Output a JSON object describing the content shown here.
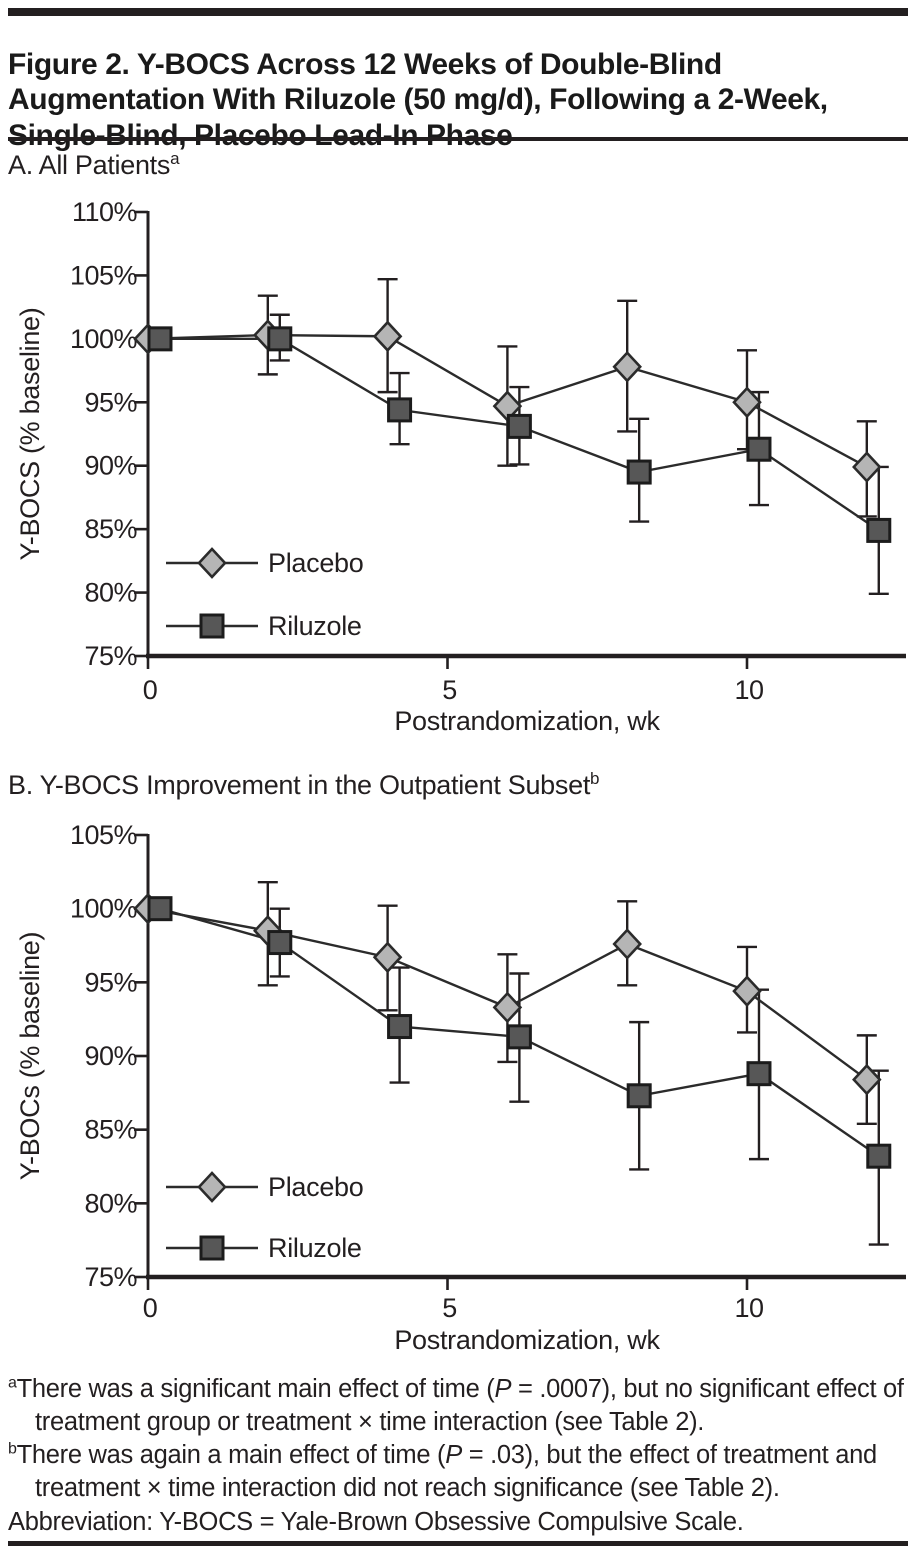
{
  "header": {
    "title_lines": [
      "Figure 2. Y-BOCS Across 12 Weeks of Double-Blind",
      "Augmentation With Riluzole (50 mg/d), Following a 2-Week,",
      "Single-Blind, Placebo Lead-In Phase"
    ]
  },
  "colors": {
    "placebo_fill": "#b5b5b5",
    "riluzole_fill": "#575757",
    "line": "#2b2b2b",
    "text": "#231f20"
  },
  "chart_data": [
    {
      "panel": "A",
      "type": "line",
      "title": "A. All Patients",
      "title_sup": "a",
      "xlabel": "Postrandomization, wk",
      "ylabel": "Y-BOCS (% baseline)",
      "ylim": [
        75,
        110
      ],
      "y_tick_step": 5,
      "y_tick_labels": [
        "110%",
        "105%",
        "100%",
        "95%",
        "90%",
        "85%",
        "80%",
        "75%"
      ],
      "x_ticks": [
        0,
        5,
        10
      ],
      "x_tick_labels": [
        "0",
        "5",
        "10"
      ],
      "x": [
        0,
        2,
        4,
        6,
        8,
        10,
        12
      ],
      "series": [
        {
          "name": "Placebo",
          "marker": "diamond",
          "fill": "#b5b5b5",
          "stroke": "#2b2b2b",
          "x_offset_wk": 0,
          "values": [
            100,
            100.3,
            100.2,
            94.7,
            97.8,
            95.0,
            89.9
          ],
          "err_hi": [
            100,
            103.4,
            104.7,
            99.4,
            103.0,
            99.1,
            93.5
          ],
          "err_lo": [
            100,
            97.2,
            95.8,
            90.0,
            92.7,
            91.3,
            86.0
          ]
        },
        {
          "name": "Riluzole",
          "marker": "square",
          "fill": "#575757",
          "stroke": "#1c1c1c",
          "x_offset_wk": 0.2,
          "values": [
            100,
            100,
            94.4,
            93.1,
            89.5,
            91.3,
            84.9
          ],
          "err_hi": [
            100,
            101.9,
            97.3,
            96.2,
            93.7,
            95.8,
            89.9
          ],
          "err_lo": [
            100,
            98.3,
            91.7,
            90.1,
            85.6,
            86.9,
            79.9
          ]
        }
      ]
    },
    {
      "panel": "B",
      "type": "line",
      "title": "B. Y-BOCS Improvement in the Outpatient Subset",
      "title_sup": "b",
      "xlabel": "Postrandomization, wk",
      "ylabel": "Y-BOCs (% baseline)",
      "ylim": [
        75,
        105
      ],
      "y_tick_step": 5,
      "y_tick_labels": [
        "105%",
        "100%",
        "95%",
        "90%",
        "85%",
        "80%",
        "75%"
      ],
      "x_ticks": [
        0,
        5,
        10
      ],
      "x_tick_labels": [
        "0",
        "5",
        "10"
      ],
      "x": [
        0,
        2,
        4,
        6,
        8,
        10,
        12
      ],
      "series": [
        {
          "name": "Placebo",
          "marker": "diamond",
          "fill": "#b5b5b5",
          "stroke": "#2b2b2b",
          "x_offset_wk": 0,
          "values": [
            100,
            98.5,
            96.7,
            93.3,
            97.6,
            94.4,
            88.4
          ],
          "err_hi": [
            100,
            101.8,
            100.2,
            96.9,
            100.5,
            97.4,
            91.4
          ],
          "err_lo": [
            100,
            94.8,
            93.1,
            89.6,
            94.8,
            91.6,
            85.4
          ]
        },
        {
          "name": "Riluzole",
          "marker": "square",
          "fill": "#575757",
          "stroke": "#1c1c1c",
          "x_offset_wk": 0.2,
          "values": [
            100,
            97.7,
            92.0,
            91.3,
            87.3,
            88.8,
            83.2
          ],
          "err_hi": [
            100,
            100.0,
            96.0,
            95.6,
            92.3,
            94.5,
            89.0
          ],
          "err_lo": [
            100,
            95.4,
            88.2,
            86.9,
            82.3,
            83.0,
            77.2
          ]
        }
      ]
    }
  ],
  "footnotes": [
    {
      "marker": "a",
      "segments": [
        {
          "t": "There was a significant main effect of time ("
        },
        {
          "t": "P",
          "i": true
        },
        {
          "t": " = .0007), but no significant effect of treatment group or treatment × time interaction (see Table 2)."
        }
      ]
    },
    {
      "marker": "b",
      "segments": [
        {
          "t": "There was again a main effect of time ("
        },
        {
          "t": "P",
          "i": true
        },
        {
          "t": " = .03), but the effect of treatment and treatment × time interaction did not reach significance (see Table 2)."
        }
      ]
    },
    {
      "marker": "",
      "segments": [
        {
          "t": "Abbreviation: Y-BOCS = Yale-Brown Obsessive Compulsive Scale."
        }
      ]
    }
  ]
}
